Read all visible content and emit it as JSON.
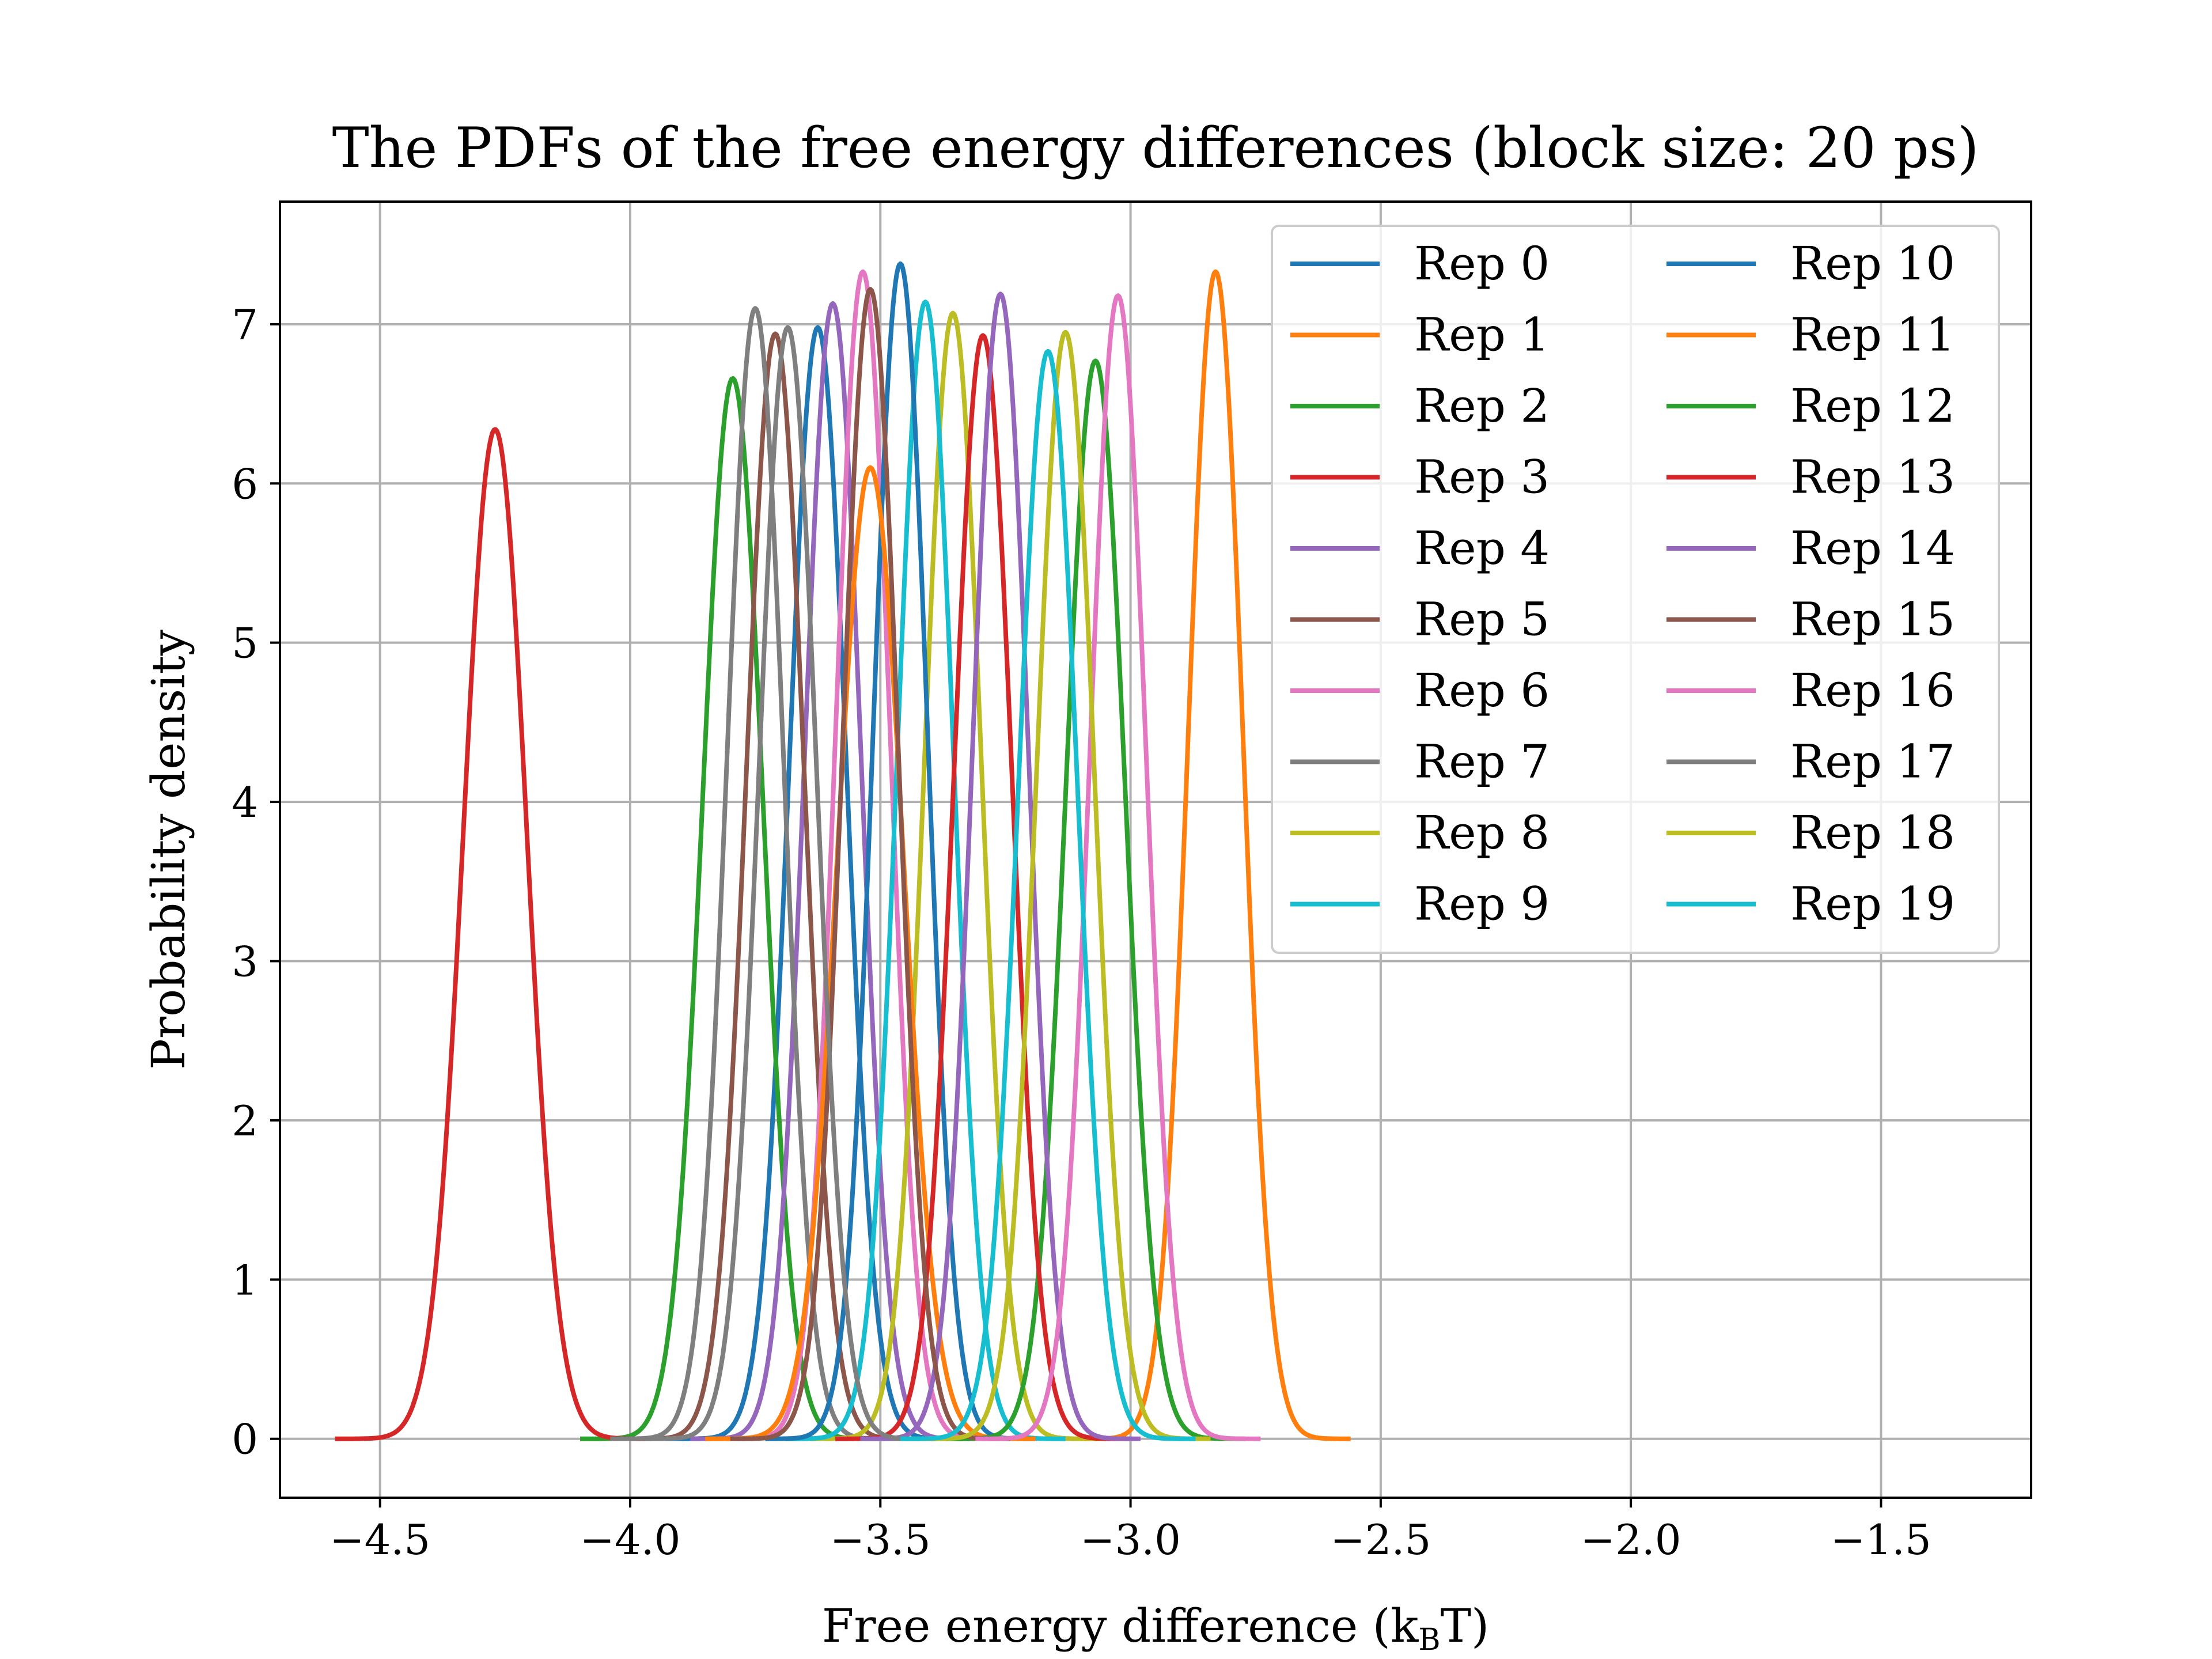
{
  "chart_data": {
    "type": "line",
    "title": "The PDFs of the free energy differences (block size: 20 ps)",
    "xlabel": "Free energy difference (",
    "xlabel_unit_base": "k",
    "xlabel_unit_sub": "B",
    "xlabel_unit_tail": "T)",
    "ylabel": "Probability density",
    "xlim": [
      -4.7,
      -1.2
    ],
    "ylim": [
      -0.37,
      7.77
    ],
    "xticks": [
      -4.5,
      -4.0,
      -3.5,
      -3.0,
      -2.5,
      -2.0,
      -1.5
    ],
    "xtick_labels": [
      "−4.5",
      "−4.0",
      "−3.5",
      "−3.0",
      "−2.5",
      "−2.0",
      "−1.5"
    ],
    "yticks": [
      0,
      1,
      2,
      3,
      4,
      5,
      6,
      7
    ],
    "ytick_labels": [
      "0",
      "1",
      "2",
      "3",
      "4",
      "5",
      "6",
      "7"
    ],
    "grid": true,
    "legend_position": "top-right",
    "legend_columns": 2,
    "series": [
      {
        "name": "Rep 0",
        "color": "#1f77b4",
        "mean": -3.625,
        "peak": 6.98,
        "xmin": -3.93,
        "xmax": -3.32
      },
      {
        "name": "Rep 1",
        "color": "#ff7f0e",
        "mean": -2.83,
        "peak": 7.33,
        "xmin": -3.1,
        "xmax": -2.56
      },
      {
        "name": "Rep 2",
        "color": "#2ca02c",
        "mean": -3.795,
        "peak": 6.66,
        "xmin": -4.1,
        "xmax": -3.5
      },
      {
        "name": "Rep 3",
        "color": "#d62728",
        "mean": -4.27,
        "peak": 6.34,
        "xmin": -4.59,
        "xmax": -3.96
      },
      {
        "name": "Rep 4",
        "color": "#9467bd",
        "mean": -3.595,
        "peak": 7.13,
        "xmin": -3.88,
        "xmax": -3.31
      },
      {
        "name": "Rep 5",
        "color": "#8c564b",
        "mean": -3.71,
        "peak": 6.94,
        "xmin": -4.0,
        "xmax": -3.42
      },
      {
        "name": "Rep 6",
        "color": "#e377c2",
        "mean": -3.535,
        "peak": 7.33,
        "xmin": -3.81,
        "xmax": -3.26
      },
      {
        "name": "Rep 7",
        "color": "#7f7f7f",
        "mean": -3.75,
        "peak": 7.1,
        "xmin": -4.04,
        "xmax": -3.46
      },
      {
        "name": "Rep 8",
        "color": "#bcbd22",
        "mean": -3.355,
        "peak": 7.07,
        "xmin": -3.64,
        "xmax": -3.07
      },
      {
        "name": "Rep 9",
        "color": "#17becf",
        "mean": -3.41,
        "peak": 7.14,
        "xmin": -3.69,
        "xmax": -3.13
      },
      {
        "name": "Rep 10",
        "color": "#1f77b4",
        "mean": -3.46,
        "peak": 7.38,
        "xmin": -3.73,
        "xmax": -3.19
      },
      {
        "name": "Rep 11",
        "color": "#ff7f0e",
        "mean": -3.52,
        "peak": 6.1,
        "xmin": -3.85,
        "xmax": -3.19
      },
      {
        "name": "Rep 12",
        "color": "#2ca02c",
        "mean": -3.07,
        "peak": 6.77,
        "xmin": -3.37,
        "xmax": -2.77
      },
      {
        "name": "Rep 13",
        "color": "#d62728",
        "mean": -3.295,
        "peak": 6.93,
        "xmin": -3.59,
        "xmax": -3.0
      },
      {
        "name": "Rep 14",
        "color": "#9467bd",
        "mean": -3.26,
        "peak": 7.19,
        "xmin": -3.54,
        "xmax": -2.98
      },
      {
        "name": "Rep 15",
        "color": "#8c564b",
        "mean": -3.52,
        "peak": 7.22,
        "xmin": -3.8,
        "xmax": -3.24
      },
      {
        "name": "Rep 16",
        "color": "#e377c2",
        "mean": -3.025,
        "peak": 7.18,
        "xmin": -3.31,
        "xmax": -2.74
      },
      {
        "name": "Rep 17",
        "color": "#7f7f7f",
        "mean": -3.685,
        "peak": 6.98,
        "xmin": -3.97,
        "xmax": -3.39
      },
      {
        "name": "Rep 18",
        "color": "#bcbd22",
        "mean": -3.13,
        "peak": 6.95,
        "xmin": -3.42,
        "xmax": -2.84
      },
      {
        "name": "Rep 19",
        "color": "#17becf",
        "mean": -3.165,
        "peak": 6.83,
        "xmin": -3.46,
        "xmax": -2.87
      }
    ]
  }
}
